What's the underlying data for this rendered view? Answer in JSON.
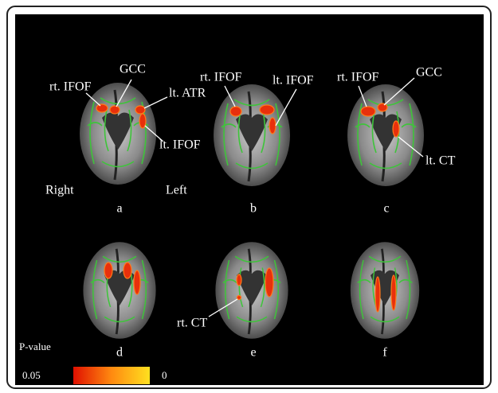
{
  "panels": [
    {
      "letter": "a",
      "annotations": [
        "rt. IFOF",
        "GCC",
        "lt. ATR",
        "lt. IFOF"
      ],
      "sides": [
        "Right",
        "Left"
      ]
    },
    {
      "letter": "b",
      "annotations": [
        "rt. IFOF",
        "lt. IFOF"
      ]
    },
    {
      "letter": "c",
      "annotations": [
        "rt. IFOF",
        "GCC",
        "lt. CT"
      ]
    },
    {
      "letter": "d",
      "annotations": []
    },
    {
      "letter": "e",
      "annotations": [
        "rt. CT"
      ]
    },
    {
      "letter": "f",
      "annotations": []
    }
  ],
  "colorbar": {
    "title": "P-value",
    "low_label": "0.05",
    "high_label": "0"
  }
}
